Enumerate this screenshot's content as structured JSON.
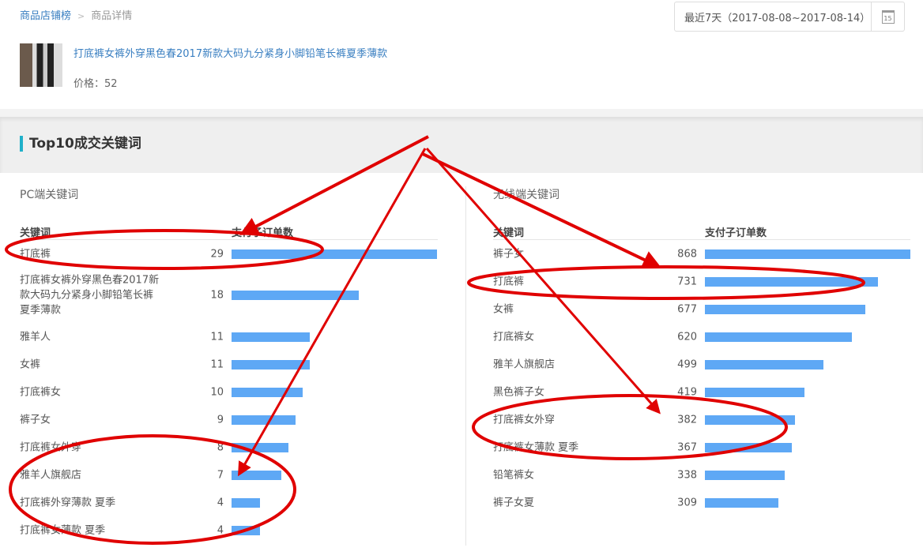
{
  "breadcrumb": {
    "parent": "商品店铺榜",
    "separator": ">",
    "current": "商品详情"
  },
  "date_range": {
    "label": "最近7天（2017-08-08~2017-08-14）",
    "calendar_icon_text": "15"
  },
  "product": {
    "title": "打底裤女裤外穿黑色春2017新款大码九分紧身小脚铅笔长裤夏季薄款",
    "price": "价格：52"
  },
  "section_title": "Top10成交关键词",
  "pc": {
    "title": "PC端关键词",
    "col_keyword": "关键词",
    "col_orders": "支付子订单数",
    "max": 29,
    "rows": [
      {
        "k": "打底裤",
        "v": 29
      },
      {
        "k": "打底裤女裤外穿黑色春2017新款大码九分紧身小脚铅笔长裤夏季薄款",
        "v": 18
      },
      {
        "k": "雅羊人",
        "v": 11
      },
      {
        "k": "女裤",
        "v": 11
      },
      {
        "k": "打底裤女",
        "v": 10
      },
      {
        "k": "裤子女",
        "v": 9
      },
      {
        "k": "打底裤女外穿",
        "v": 8
      },
      {
        "k": "雅羊人旗舰店",
        "v": 7
      },
      {
        "k": "打底裤外穿薄款 夏季",
        "v": 4
      },
      {
        "k": "打底裤女薄款 夏季",
        "v": 4
      }
    ]
  },
  "mobile": {
    "title": "无线端关键词",
    "col_keyword": "关键词",
    "col_orders": "支付子订单数",
    "max": 868,
    "rows": [
      {
        "k": "裤子女",
        "v": 868
      },
      {
        "k": "打底裤",
        "v": 731
      },
      {
        "k": "女裤",
        "v": 677
      },
      {
        "k": "打底裤女",
        "v": 620
      },
      {
        "k": "雅羊人旗舰店",
        "v": 499
      },
      {
        "k": "黑色裤子女",
        "v": 419
      },
      {
        "k": "打底裤女外穿",
        "v": 382
      },
      {
        "k": "打底裤女薄款 夏季",
        "v": 367
      },
      {
        "k": "铅笔裤女",
        "v": 338
      },
      {
        "k": "裤子女夏",
        "v": 309
      }
    ]
  },
  "colors": {
    "link": "#3a7fc1",
    "bar": "#5ea8f5",
    "accent": "#1fb0c9",
    "annotation": "#e00000"
  }
}
